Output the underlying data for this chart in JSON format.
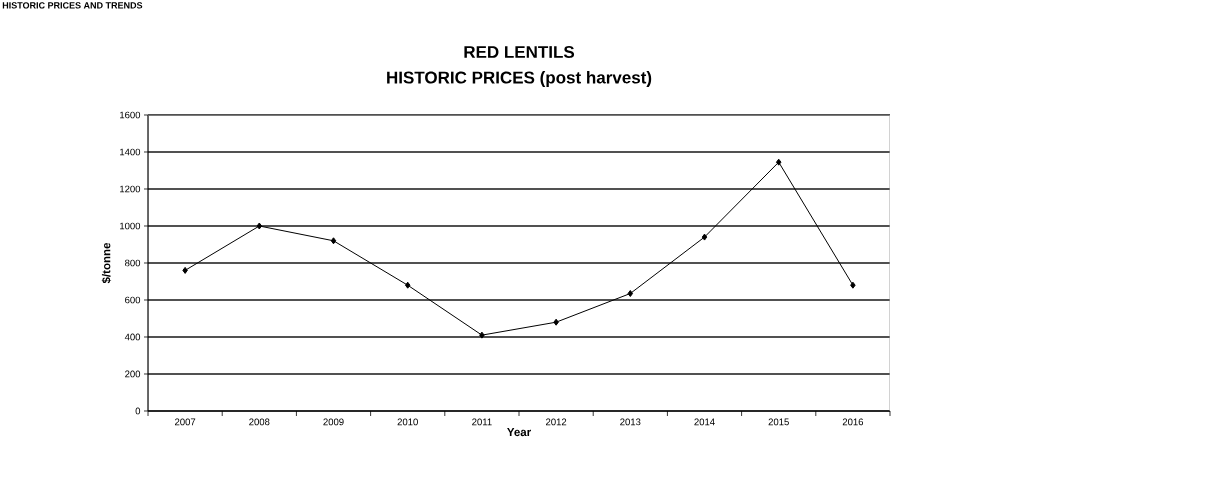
{
  "chart_data": {
    "type": "line",
    "title": "RED LENTILS",
    "subtitle": "HISTORIC PRICES (post harvest)",
    "xlabel": "Year",
    "ylabel": "$/tonne",
    "annotations": [
      "HISTORIC PRICES AND TRENDS"
    ],
    "categories": [
      "2007",
      "2008",
      "2009",
      "2010",
      "2011",
      "2012",
      "2013",
      "2014",
      "2015",
      "2016"
    ],
    "values": [
      760,
      1000,
      920,
      680,
      410,
      480,
      635,
      940,
      1345,
      680
    ],
    "color": "#000000",
    "ylim": [
      0,
      1600
    ],
    "yticks": [
      0,
      200,
      400,
      600,
      800,
      1000,
      1200,
      1400,
      1600
    ],
    "grid": "y",
    "marker": "diamond",
    "line_style": "solid"
  }
}
